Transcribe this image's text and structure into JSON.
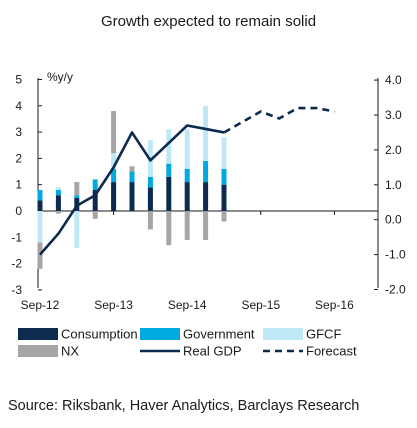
{
  "chart_data": {
    "type": "bar",
    "title": "Growth expected to remain solid",
    "unit_label": "%y/y",
    "y_left": {
      "ylim": [
        -3,
        5
      ],
      "ticks": [
        -3,
        -2,
        -1,
        0,
        1,
        2,
        3,
        4,
        5
      ]
    },
    "y_right": {
      "ylim": [
        -2.0,
        4.0
      ],
      "ticks": [
        "4.0",
        "3.0",
        "2.0",
        "1.0",
        "0.0",
        "-1.0",
        "-2.0"
      ]
    },
    "x_ticks": [
      "Sep-12",
      "Sep-13",
      "Sep-14",
      "Sep-15",
      "Sep-16"
    ],
    "stacked": true,
    "quarters": [
      "Sep-12",
      "Dec-12",
      "Mar-13",
      "Jun-13",
      "Sep-13",
      "Dec-13",
      "Mar-14",
      "Jun-14",
      "Sep-14",
      "Dec-14",
      "Mar-15",
      "Jun-15",
      "Sep-15",
      "Dec-15",
      "Mar-16",
      "Jun-16",
      "Sep-16",
      "Dec-16"
    ],
    "series": [
      {
        "name": "Consumption",
        "axis": "left",
        "kind": "bar",
        "color": "#0d2b4e",
        "values": [
          0.4,
          0.6,
          0.5,
          0.8,
          1.1,
          1.1,
          0.9,
          1.3,
          1.1,
          1.1,
          1.0,
          null,
          null,
          null,
          null,
          null,
          null,
          null
        ]
      },
      {
        "name": "Government",
        "axis": "left",
        "kind": "bar",
        "color": "#00a9e0",
        "values": [
          0.4,
          0.2,
          0.1,
          0.4,
          0.5,
          0.4,
          0.4,
          0.5,
          0.5,
          0.8,
          0.6,
          null,
          null,
          null,
          null,
          null,
          null,
          null
        ]
      },
      {
        "name": "GFCF",
        "axis": "left",
        "kind": "bar",
        "color": "#bfe8f7",
        "values": [
          -1.2,
          0.1,
          -1.4,
          0.0,
          0.6,
          0.0,
          1.4,
          1.3,
          1.5,
          2.1,
          1.2,
          null,
          null,
          null,
          null,
          null,
          null,
          null
        ]
      },
      {
        "name": "NX",
        "axis": "left",
        "kind": "bar",
        "color": "#a6a6a6",
        "values": [
          -1.0,
          -0.1,
          0.5,
          -0.3,
          1.6,
          0.2,
          -0.7,
          -1.3,
          -1.1,
          -1.1,
          -0.4,
          null,
          null,
          null,
          null,
          null,
          null,
          null
        ]
      },
      {
        "name": "Real GDP",
        "axis": "right",
        "kind": "line",
        "color": "#0d2b4e",
        "values": [
          -1.0,
          -0.4,
          0.4,
          0.7,
          1.5,
          2.5,
          1.7,
          2.2,
          2.7,
          2.6,
          2.5,
          null,
          null,
          null,
          null,
          null,
          null,
          null
        ]
      },
      {
        "name": "Forecast",
        "axis": "right",
        "kind": "line-dashed",
        "color": "#0d2b4e",
        "values": [
          null,
          null,
          null,
          null,
          null,
          null,
          null,
          null,
          null,
          null,
          2.5,
          2.8,
          3.1,
          2.9,
          3.2,
          3.2,
          3.1,
          null
        ]
      }
    ],
    "legend": [
      "Consumption",
      "Government",
      "GFCF",
      "NX",
      "Real GDP",
      "Forecast"
    ],
    "legend_position": "bottom",
    "grid": false
  },
  "source": "Source: Riksbank, Haver Analytics, Barclays Research"
}
